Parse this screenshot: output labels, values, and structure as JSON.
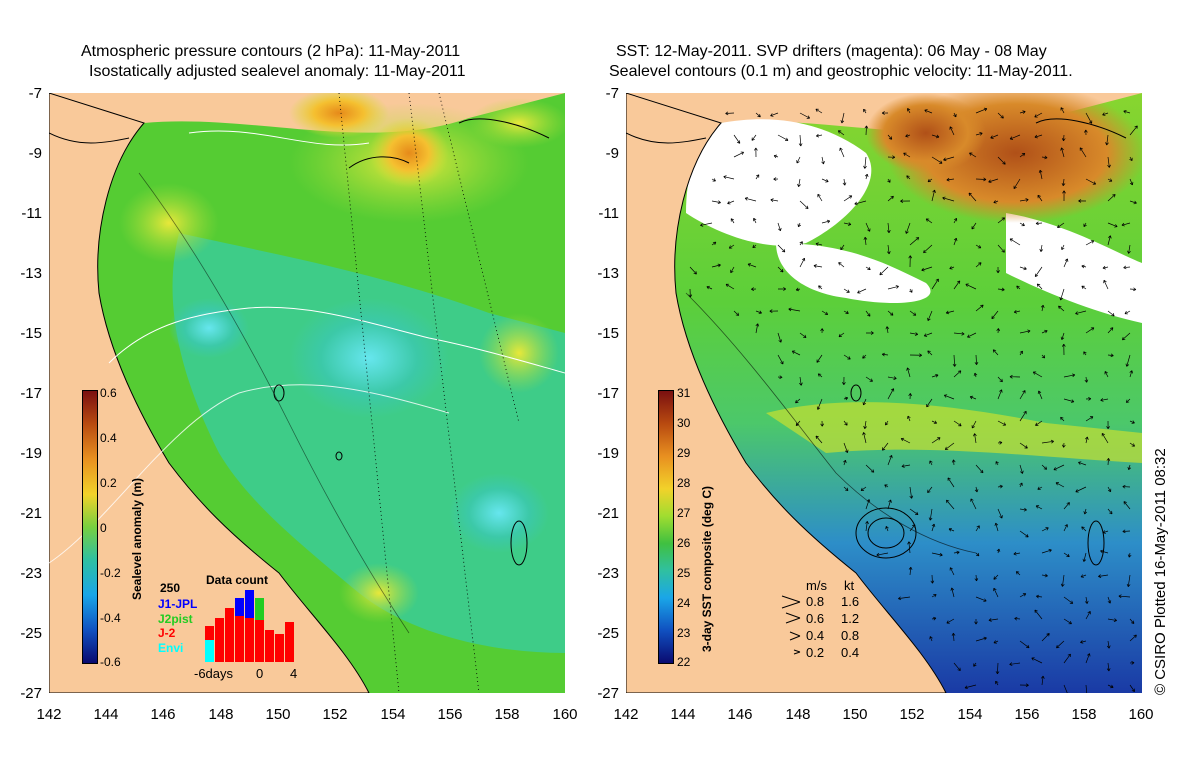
{
  "left_panel": {
    "title_line1": "Atmospheric pressure contours (2 hPa): 11-May-2011",
    "title_line2": "Isostatically adjusted sealevel anomaly: 11-May-2011",
    "colorbar": {
      "title": "Sealevel anomaly (m)",
      "tick_labels": [
        "0.6",
        "0.4",
        "0.2",
        "0",
        "-0.2",
        "-0.4",
        "-0.6"
      ],
      "range": [
        -0.6,
        0.6
      ]
    },
    "data_count": {
      "title": "Data count",
      "max_label": "250",
      "x_labels": [
        "-6days",
        "0",
        "4"
      ],
      "series": [
        {
          "name": "J1-JPL",
          "color": "#0000ff"
        },
        {
          "name": "J2pist",
          "color": "#22cc22"
        },
        {
          "name": "J-2",
          "color": "#ff0000"
        },
        {
          "name": "Envi",
          "color": "#00ffff"
        }
      ]
    }
  },
  "right_panel": {
    "title_line1": "SST: 12-May-2011. SVP drifters (magenta): 06 May - 08 May",
    "title_line2": "Sealevel contours (0.1 m) and geostrophic velocity: 11-May-2011.",
    "colorbar": {
      "title": "3-day SST composite (deg C)",
      "tick_labels": [
        "31",
        "30",
        "29",
        "28",
        "27",
        "26",
        "25",
        "24",
        "23",
        "22"
      ],
      "range": [
        22,
        31
      ]
    },
    "velocity_legend": {
      "header_ms": "m/s",
      "header_kt": "kt",
      "rows": [
        {
          "ms": "0.8",
          "kt": "1.6"
        },
        {
          "ms": "0.6",
          "kt": "1.2"
        },
        {
          "ms": "0.4",
          "kt": "0.8"
        },
        {
          "ms": "0.2",
          "kt": "0.4"
        }
      ]
    }
  },
  "axes": {
    "y_ticks": [
      "-7",
      "-9",
      "-11",
      "-13",
      "-15",
      "-17",
      "-19",
      "-21",
      "-23",
      "-25",
      "-27"
    ],
    "x_ticks": [
      "142",
      "144",
      "146",
      "148",
      "150",
      "152",
      "154",
      "156",
      "158",
      "160"
    ],
    "lon_range": [
      142,
      160
    ],
    "lat_range": [
      -27,
      -7
    ]
  },
  "credit": "© CSIRO Plotted 16-May-2011 08:32",
  "colors": {
    "land": "#f9c99a",
    "ocean_green": "#55cc33",
    "ocean_teal": "#33ccaa",
    "anomaly_high": "#ffaa00"
  }
}
